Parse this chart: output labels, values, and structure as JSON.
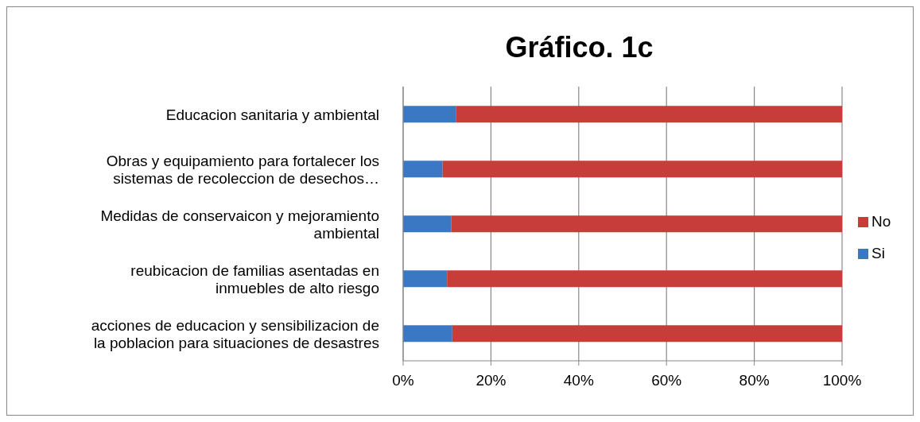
{
  "chart_data": {
    "type": "bar",
    "title": "Gráfico. 1c",
    "orientation": "horizontal",
    "stacked": true,
    "categories": [
      "Educacion sanitaria y ambiental",
      "Obras y equipamiento para fortalecer los sistemas de recoleccion de desechos…",
      "Medidas de conservaicon y mejoramiento ambiental",
      "reubicacion de familias asentadas en inmuebles de alto riesgo",
      "acciones de educacion y sensibilizacion de la poblacion para situaciones de desastres"
    ],
    "series": [
      {
        "name": "Si",
        "color": "#3a78c4",
        "values": [
          12,
          9,
          11,
          10,
          11.2
        ]
      },
      {
        "name": "No",
        "color": "#c73d3a",
        "values": [
          88,
          91,
          89,
          90,
          88.8
        ]
      }
    ],
    "xlim": [
      0,
      100
    ],
    "xticks": [
      {
        "value": 0,
        "label": "0%"
      },
      {
        "value": 20,
        "label": "20%"
      },
      {
        "value": 40,
        "label": "40%"
      },
      {
        "value": 60,
        "label": "60%"
      },
      {
        "value": 80,
        "label": "80%"
      },
      {
        "value": 100,
        "label": "100%"
      }
    ],
    "grid": "x",
    "legend": "right"
  }
}
